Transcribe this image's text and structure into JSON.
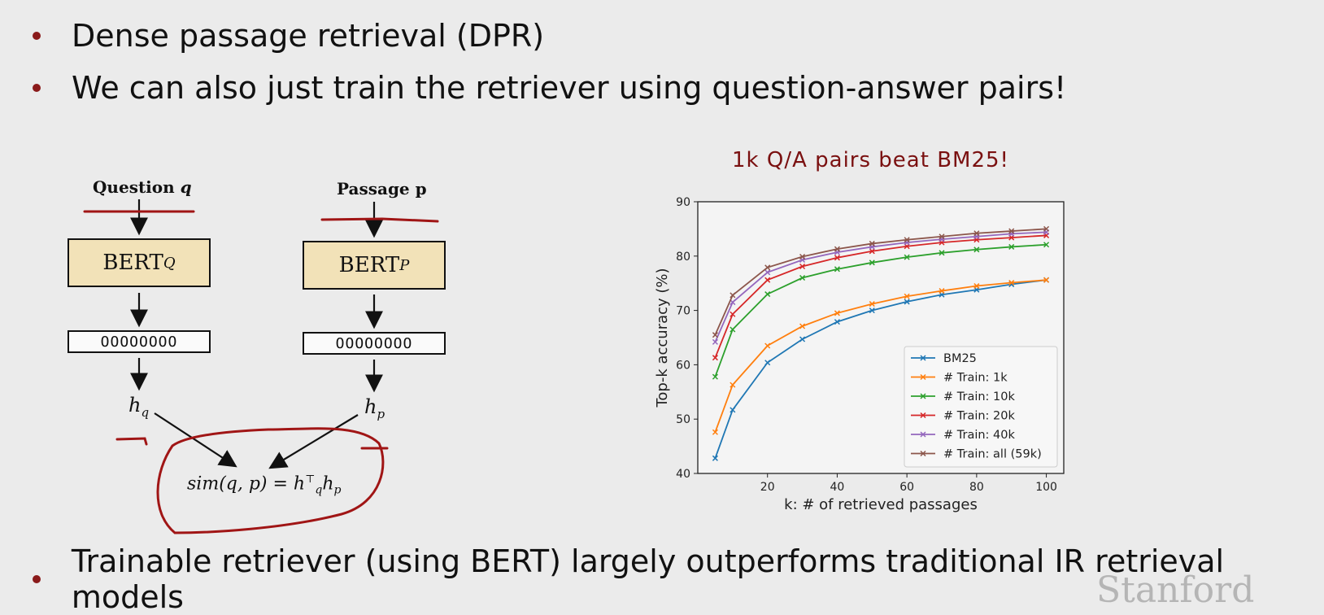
{
  "bullets": [
    "Dense passage retrieval (DPR)",
    "We can also just train the retriever using question-answer pairs!",
    "Trainable retriever (using BERT) largely outperforms traditional IR retrieval models"
  ],
  "diagram": {
    "question_label": "Question",
    "question_var": "q",
    "passage_label": "Passage p",
    "bert_q": "BERT",
    "bert_q_sub": "Q",
    "bert_p": "BERT",
    "bert_p_sub": "P",
    "vector_dots": "OOOOOOOO",
    "hq": "h",
    "hq_sub": "q",
    "hp": "h",
    "hp_sub": "p",
    "sim_left": "sim(q, p) = h",
    "sim_sup": "⊤",
    "sim_sub_q": "q",
    "sim_h": "h",
    "sim_sub_p": "p"
  },
  "annotation": "1k Q/A pairs beat BM25!",
  "logo": "Stanford",
  "chart_data": {
    "type": "line",
    "xlabel": "k: # of retrieved passages",
    "ylabel": "Top-k accuracy (%)",
    "xlim": [
      0,
      105
    ],
    "ylim": [
      40,
      90
    ],
    "xticks": [
      20,
      40,
      60,
      80,
      100
    ],
    "yticks": [
      40,
      50,
      60,
      70,
      80,
      90
    ],
    "legend_position": "bottom-right",
    "x": [
      5,
      10,
      20,
      30,
      40,
      50,
      60,
      70,
      80,
      90,
      100
    ],
    "series": [
      {
        "name": "BM25",
        "color": "#1f77b4",
        "values": [
          42.8,
          51.7,
          60.4,
          64.7,
          67.9,
          70.0,
          71.6,
          72.9,
          73.8,
          74.8,
          75.6
        ]
      },
      {
        "name": "# Train: 1k",
        "color": "#ff7f0e",
        "values": [
          47.6,
          56.3,
          63.5,
          67.1,
          69.5,
          71.2,
          72.6,
          73.6,
          74.5,
          75.1,
          75.6
        ]
      },
      {
        "name": "# Train: 10k",
        "color": "#2ca02c",
        "values": [
          57.8,
          66.5,
          73.0,
          76.0,
          77.6,
          78.8,
          79.8,
          80.6,
          81.2,
          81.7,
          82.1
        ]
      },
      {
        "name": "# Train: 20k",
        "color": "#d62728",
        "values": [
          61.3,
          69.3,
          75.6,
          78.1,
          79.7,
          80.9,
          81.8,
          82.5,
          83.0,
          83.4,
          83.8
        ]
      },
      {
        "name": "# Train: 40k",
        "color": "#9467bd",
        "values": [
          64.2,
          71.5,
          77.0,
          79.3,
          80.7,
          81.7,
          82.5,
          83.1,
          83.6,
          84.1,
          84.4
        ]
      },
      {
        "name": "# Train: all (59k)",
        "color": "#8c564b",
        "values": [
          65.5,
          72.8,
          77.9,
          79.9,
          81.3,
          82.3,
          83.0,
          83.6,
          84.2,
          84.6,
          85.0
        ]
      }
    ]
  }
}
